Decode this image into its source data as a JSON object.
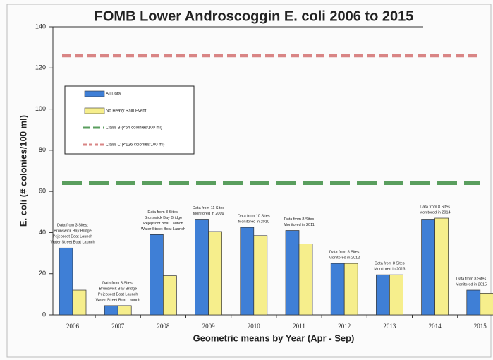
{
  "chart_data": {
    "type": "bar",
    "title": "FOMB Lower Androscoggin E. coli 2006 to 2015",
    "y_label": "E. coli (# colonies/100 ml)",
    "x_label": "Geometric means by Year (Apr - Sep)",
    "categories": [
      "2006",
      "2007",
      "2008",
      "2009",
      "2010",
      "2011",
      "2012",
      "2013",
      "2014",
      "2015"
    ],
    "series": [
      {
        "name": "All Data",
        "color": "#3f7fd6",
        "values": [
          32.5,
          4.5,
          39,
          46.5,
          42.5,
          41,
          25,
          19.5,
          46.5,
          12
        ]
      },
      {
        "name": "No Heavy Rain Event",
        "color": "#f6ee8c",
        "values": [
          12,
          4.5,
          19,
          40.5,
          38.5,
          34.5,
          25,
          19.5,
          47,
          10.5
        ]
      }
    ],
    "reference_lines": [
      {
        "name": "Class B (<64 colonies/100 ml)",
        "color": "#5a9e5e",
        "value": 64
      },
      {
        "name": "Class C (<126 colonies/100 ml)",
        "color": "#d98585",
        "value": 126
      }
    ],
    "annotations": [
      [
        "Data from 3 Sites:",
        "Brunswick Bay Bridge",
        "Pejepscot Boat Launch",
        "Water Street Boat Launch"
      ],
      [
        "Data from 3 Sites:",
        "Brunswick Bay Bridge",
        "Pejepscot Boat Launch",
        "Water Street Boat Launch"
      ],
      [
        "Data from 3 Sites:",
        "Brunswick Bay Bridge",
        "Pejepscot Boat Launch",
        "Water Street Boat Launch"
      ],
      [
        "Data from 11 Sites",
        "Monitored in 2009"
      ],
      [
        "Data from 10 Sites",
        "Monitored in 2010"
      ],
      [
        "Data from 8 Sites",
        "Monitored in 2011"
      ],
      [
        "Data from 8 Sites",
        "Monitored in 2012"
      ],
      [
        "Data from 8 Sites",
        "Monitored in 2013"
      ],
      [
        "Data from 8 Sites",
        "Monitored in 2014"
      ],
      [
        "Data from 8 Sites",
        "Monitored in 2015"
      ]
    ],
    "ylim": [
      0,
      140
    ],
    "yticks": [
      0,
      20,
      40,
      60,
      80,
      100,
      120,
      140
    ]
  }
}
